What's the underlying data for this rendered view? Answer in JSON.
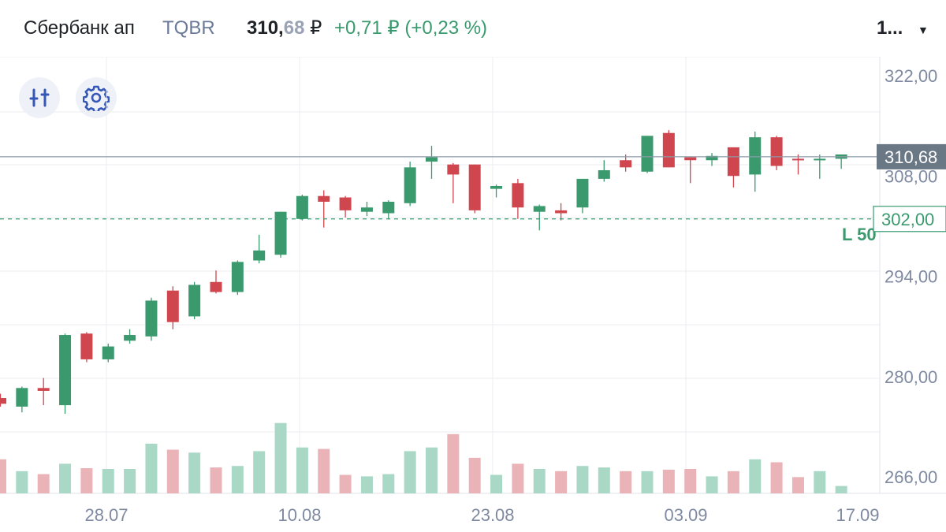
{
  "header": {
    "ticker_name": "Сбербанк ап",
    "board": "TQBR",
    "price_int": "310,",
    "price_dec": "68",
    "currency": "₽",
    "change": "+0,71 ₽ (+0,23 %)",
    "interval": "1..."
  },
  "toolbar": {
    "indicators_icon": "sliders-icon",
    "settings_icon": "gear-icon"
  },
  "colors": {
    "up": "#3a9a6e",
    "down": "#d0464f",
    "vol_up": "#a9d8c6",
    "vol_down": "#eab3b8",
    "grid": "#eceef2",
    "axis_text": "#7f8aa1",
    "price_line": "#8c99a8",
    "price_tag_bg": "#6a7785",
    "limit_line": "#3a9a6e"
  },
  "chart_data": {
    "type": "candlestick",
    "y_axis_ticks": [
      "322,00",
      "308,00",
      "294,00",
      "280,00",
      "266,00"
    ],
    "x_axis_ticks": [
      "28.07",
      "10.08",
      "23.08",
      "03.09",
      "17.09"
    ],
    "last_price": 310.68,
    "last_price_label": "310,68",
    "limit_price": 302.0,
    "limit_price_label": "302,00",
    "limit_order_label": "L 50",
    "grid": true,
    "candles": [
      {
        "o": 277.0,
        "h": 277.6,
        "l": 275.8,
        "c": 276.2
      },
      {
        "o": 275.8,
        "h": 278.6,
        "l": 275.0,
        "c": 278.4
      },
      {
        "o": 278.4,
        "h": 279.8,
        "l": 276.0,
        "c": 278.0
      },
      {
        "o": 276.0,
        "h": 286.0,
        "l": 274.8,
        "c": 285.8
      },
      {
        "o": 286.0,
        "h": 286.2,
        "l": 282.0,
        "c": 282.4
      },
      {
        "o": 282.4,
        "h": 284.6,
        "l": 282.0,
        "c": 284.2
      },
      {
        "o": 285.0,
        "h": 286.6,
        "l": 284.6,
        "c": 285.8
      },
      {
        "o": 285.6,
        "h": 291.0,
        "l": 285.0,
        "c": 290.6
      },
      {
        "o": 292.0,
        "h": 292.6,
        "l": 286.6,
        "c": 287.6
      },
      {
        "o": 288.4,
        "h": 293.2,
        "l": 288.0,
        "c": 292.8
      },
      {
        "o": 293.2,
        "h": 294.8,
        "l": 291.6,
        "c": 291.8
      },
      {
        "o": 291.8,
        "h": 296.2,
        "l": 291.4,
        "c": 296.0
      },
      {
        "o": 296.2,
        "h": 299.8,
        "l": 295.8,
        "c": 297.6
      },
      {
        "o": 297.0,
        "h": 303.0,
        "l": 296.6,
        "c": 303.0
      },
      {
        "o": 302.0,
        "h": 305.4,
        "l": 301.8,
        "c": 305.2
      },
      {
        "o": 305.2,
        "h": 306.0,
        "l": 300.8,
        "c": 304.4
      },
      {
        "o": 305.0,
        "h": 305.2,
        "l": 302.2,
        "c": 303.2
      },
      {
        "o": 303.0,
        "h": 304.4,
        "l": 302.4,
        "c": 303.6
      },
      {
        "o": 302.8,
        "h": 304.6,
        "l": 302.0,
        "c": 304.4
      },
      {
        "o": 304.2,
        "h": 310.0,
        "l": 303.8,
        "c": 309.2
      },
      {
        "o": 310.0,
        "h": 312.2,
        "l": 307.6,
        "c": 310.6
      },
      {
        "o": 309.6,
        "h": 309.8,
        "l": 304.2,
        "c": 308.2
      },
      {
        "o": 309.6,
        "h": 309.6,
        "l": 302.8,
        "c": 303.2
      },
      {
        "o": 306.2,
        "h": 306.8,
        "l": 305.0,
        "c": 306.6
      },
      {
        "o": 307.0,
        "h": 307.6,
        "l": 302.0,
        "c": 303.6
      },
      {
        "o": 303.0,
        "h": 304.0,
        "l": 300.4,
        "c": 303.8
      },
      {
        "o": 303.2,
        "h": 304.2,
        "l": 301.8,
        "c": 302.8
      },
      {
        "o": 303.6,
        "h": 307.6,
        "l": 302.8,
        "c": 307.6
      },
      {
        "o": 307.6,
        "h": 310.2,
        "l": 307.2,
        "c": 308.8
      },
      {
        "o": 310.2,
        "h": 311.0,
        "l": 308.6,
        "c": 309.2
      },
      {
        "o": 308.6,
        "h": 313.6,
        "l": 308.4,
        "c": 313.6
      },
      {
        "o": 314.0,
        "h": 314.4,
        "l": 309.2,
        "c": 309.2
      },
      {
        "o": 310.6,
        "h": 310.6,
        "l": 307.0,
        "c": 310.2
      },
      {
        "o": 310.2,
        "h": 311.2,
        "l": 309.4,
        "c": 310.8
      },
      {
        "o": 312.0,
        "h": 312.0,
        "l": 306.4,
        "c": 308.0
      },
      {
        "o": 308.2,
        "h": 314.2,
        "l": 305.8,
        "c": 313.4
      },
      {
        "o": 313.4,
        "h": 313.6,
        "l": 308.8,
        "c": 309.4
      },
      {
        "o": 310.4,
        "h": 311.0,
        "l": 308.2,
        "c": 310.2
      },
      {
        "o": 310.2,
        "h": 311.0,
        "l": 307.6,
        "c": 310.4
      },
      {
        "o": 310.4,
        "h": 311.0,
        "l": 309.0,
        "c": 311.0
      }
    ],
    "volume_relative": [
      0.46,
      0.3,
      0.26,
      0.4,
      0.34,
      0.33,
      0.33,
      0.67,
      0.59,
      0.55,
      0.35,
      0.37,
      0.57,
      0.95,
      0.62,
      0.6,
      0.25,
      0.23,
      0.26,
      0.57,
      0.62,
      0.8,
      0.48,
      0.25,
      0.4,
      0.33,
      0.3,
      0.37,
      0.35,
      0.3,
      0.3,
      0.32,
      0.33,
      0.23,
      0.3,
      0.46,
      0.42,
      0.22,
      0.3,
      0.1
    ]
  }
}
